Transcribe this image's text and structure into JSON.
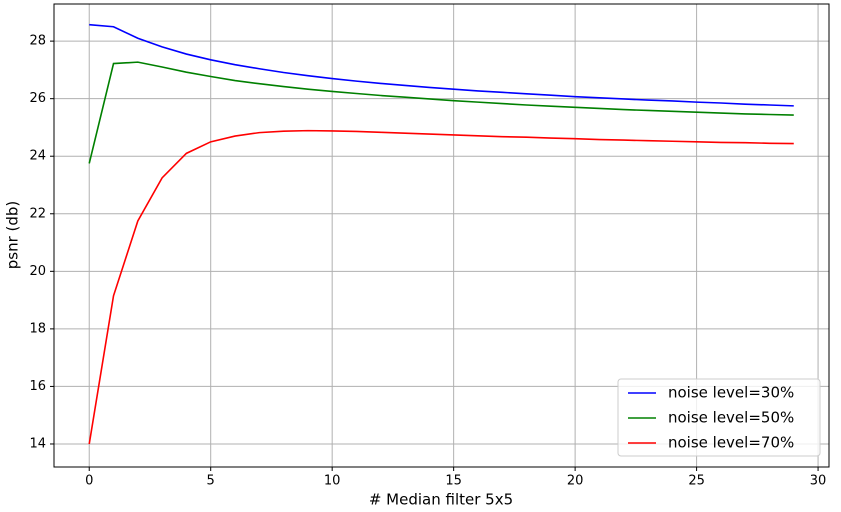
{
  "chart_data": {
    "type": "line",
    "xlabel": "# Median filter 5x5",
    "ylabel": "psnr (db)",
    "x": [
      0,
      1,
      2,
      3,
      4,
      5,
      6,
      7,
      8,
      9,
      10,
      11,
      12,
      13,
      14,
      15,
      16,
      17,
      18,
      19,
      20,
      21,
      22,
      23,
      24,
      25,
      26,
      27,
      28,
      29
    ],
    "series": [
      {
        "name": "noise level=30%",
        "color": "#0000ff",
        "values": [
          28.57,
          28.5,
          28.1,
          27.8,
          27.55,
          27.35,
          27.18,
          27.04,
          26.91,
          26.8,
          26.7,
          26.61,
          26.53,
          26.46,
          26.39,
          26.33,
          26.27,
          26.22,
          26.17,
          26.12,
          26.07,
          26.03,
          25.99,
          25.95,
          25.92,
          25.88,
          25.85,
          25.81,
          25.78,
          25.75
        ]
      },
      {
        "name": "noise level=50%",
        "color": "#008000",
        "values": [
          23.75,
          27.22,
          27.27,
          27.1,
          26.92,
          26.77,
          26.63,
          26.52,
          26.42,
          26.33,
          26.25,
          26.18,
          26.11,
          26.05,
          25.99,
          25.93,
          25.88,
          25.83,
          25.78,
          25.74,
          25.7,
          25.66,
          25.62,
          25.59,
          25.56,
          25.53,
          25.5,
          25.47,
          25.45,
          25.43
        ]
      },
      {
        "name": "noise level=70%",
        "color": "#ff0000",
        "values": [
          14.0,
          19.15,
          21.75,
          23.25,
          24.1,
          24.5,
          24.7,
          24.82,
          24.87,
          24.89,
          24.88,
          24.86,
          24.83,
          24.8,
          24.77,
          24.74,
          24.71,
          24.68,
          24.66,
          24.63,
          24.61,
          24.58,
          24.56,
          24.54,
          24.52,
          24.5,
          24.48,
          24.47,
          24.45,
          24.44
        ]
      }
    ],
    "xlim": [
      -1.45,
      30.45
    ],
    "ylim": [
      13.2,
      29.29
    ],
    "xticks": [
      0,
      5,
      10,
      15,
      20,
      25,
      30
    ],
    "yticks": [
      14,
      16,
      18,
      20,
      22,
      24,
      26,
      28
    ],
    "grid": true,
    "legend": "lower right"
  }
}
